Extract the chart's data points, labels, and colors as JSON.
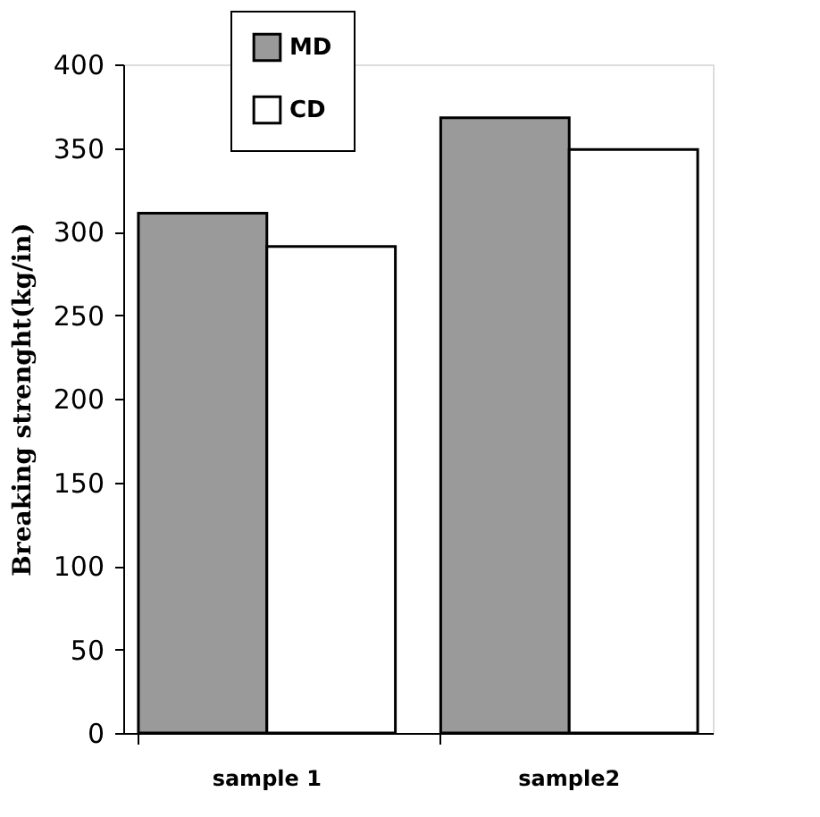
{
  "chart_data": {
    "type": "bar",
    "ylabel": "Breaking strenght(kg/in)",
    "categories": [
      "sample 1",
      "sample2"
    ],
    "series": [
      {
        "name": "MD",
        "color": "#9a9a9a",
        "values": [
          311,
          368
        ]
      },
      {
        "name": "CD",
        "color": "#ffffff",
        "values": [
          291,
          349
        ]
      }
    ],
    "ylim": [
      0,
      400
    ],
    "yticks": [
      0,
      50,
      100,
      150,
      200,
      250,
      300,
      350,
      400
    ],
    "grid": false,
    "legend": "top left"
  }
}
